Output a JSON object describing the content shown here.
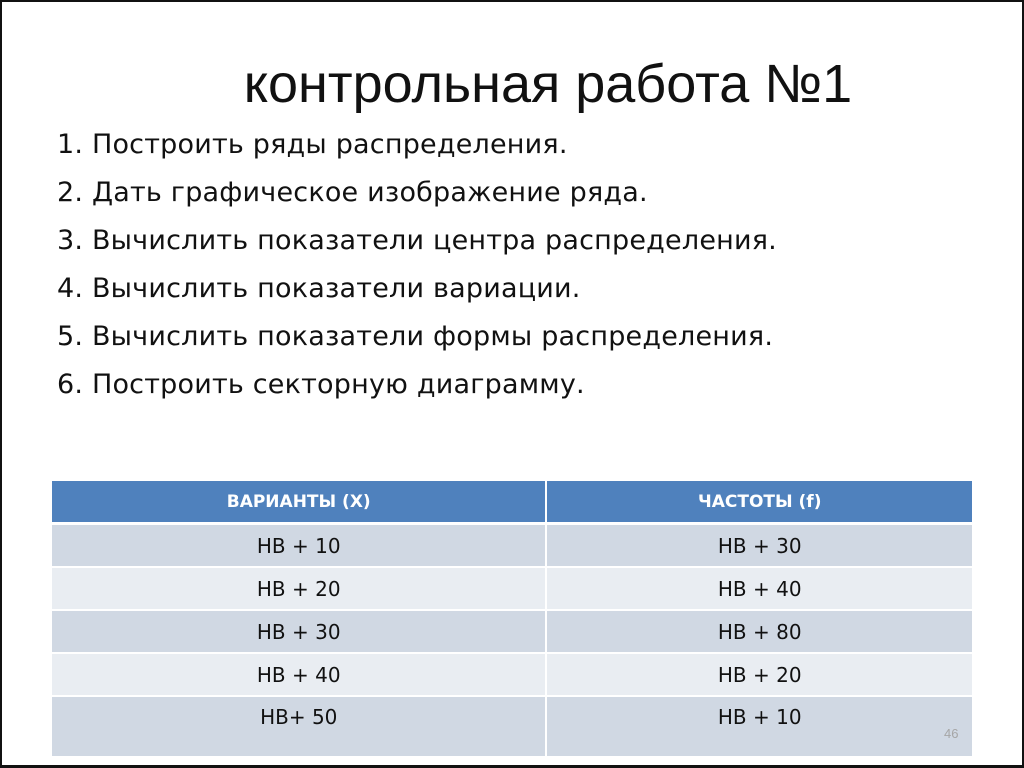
{
  "slide": {
    "title": "контрольная работа №1",
    "tasks": [
      "1. Построить ряды распределения.",
      "2. Дать графическое изображение ряда.",
      "3. Вычислить показатели центра распределения.",
      "4. Вычислить показатели вариации.",
      "5. Вычислить показатели формы распределения.",
      "6. Построить секторную диаграмму."
    ],
    "table": {
      "headers": [
        "ВАРИАНТЫ  (X)",
        "ЧАСТОТЫ  (f)"
      ],
      "rows": [
        [
          "НВ + 10",
          "НВ + 30"
        ],
        [
          "НВ + 20",
          "НВ + 40"
        ],
        [
          "НВ + 30",
          "НВ + 80"
        ],
        [
          "НВ + 40",
          "НВ + 20"
        ],
        [
          "НВ+ 50",
          "НВ + 10"
        ]
      ]
    },
    "page_number": "46",
    "colors": {
      "header": "#4f81bd",
      "row_dark": "#d0d8e3",
      "row_light": "#e9edf2"
    }
  }
}
